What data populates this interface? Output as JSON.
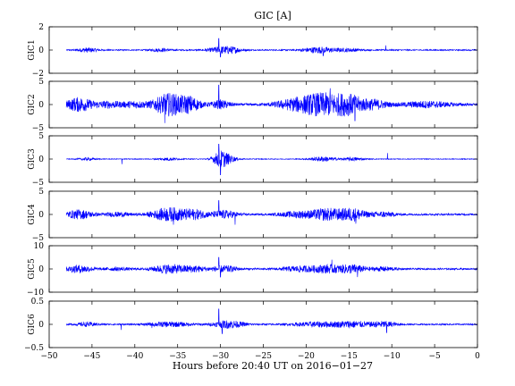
{
  "chart_data": {
    "type": "line",
    "title": "GIC [A]",
    "xlabel": "Hours before  20:40 UT on 2016−01−27",
    "xlim": [
      -50,
      0
    ],
    "xticks": [
      -50,
      -45,
      -40,
      -35,
      -30,
      -25,
      -20,
      -15,
      -10,
      -5,
      0
    ],
    "xtick_labels": [
      "−50",
      "−45",
      "−40",
      "−35",
      "−30",
      "−25",
      "−20",
      "−15",
      "−10",
      "−5",
      "0"
    ],
    "series_color": "#0000ff",
    "data_x_range": [
      -48,
      0
    ],
    "grid": false,
    "legend": "none",
    "panels": [
      {
        "label": "GIC1",
        "ylim": [
          -2,
          2
        ],
        "yticks": [
          -2,
          0,
          2
        ],
        "ytick_labels": [
          "−2",
          "0",
          "2"
        ],
        "baseline": 0,
        "noise": 0.05,
        "bursts": [
          {
            "t": -45.5,
            "w": 1.2,
            "a": 0.18
          },
          {
            "t": -37,
            "w": 1.2,
            "a": 0.12
          },
          {
            "t": -30,
            "w": 1.5,
            "a": 0.25
          },
          {
            "t": -28.5,
            "w": 1.2,
            "a": 0.18
          },
          {
            "t": -18.5,
            "w": 2.0,
            "a": 0.25
          },
          {
            "t": -15,
            "w": 1.5,
            "a": 0.12
          }
        ],
        "spikes": [
          {
            "t": -30.2,
            "v": 1.0
          },
          {
            "t": -30.0,
            "v": -0.6
          },
          {
            "t": -18.0,
            "v": -0.5
          },
          {
            "t": -10.7,
            "v": 0.4
          }
        ]
      },
      {
        "label": "GIC2",
        "ylim": [
          -5,
          5
        ],
        "yticks": [
          -5,
          0,
          5
        ],
        "ytick_labels": [
          "−5",
          "0",
          "5"
        ],
        "baseline": 0,
        "noise": 0.25,
        "bursts": [
          {
            "t": -46.5,
            "w": 1.6,
            "a": 1.4
          },
          {
            "t": -43,
            "w": 1.5,
            "a": 0.6
          },
          {
            "t": -40,
            "w": 1.5,
            "a": 0.6
          },
          {
            "t": -36,
            "w": 1.8,
            "a": 2.3
          },
          {
            "t": -33.5,
            "w": 1.2,
            "a": 1.4
          },
          {
            "t": -30,
            "w": 1.2,
            "a": 0.8
          },
          {
            "t": -21,
            "w": 2.5,
            "a": 1.2
          },
          {
            "t": -18,
            "w": 2.2,
            "a": 2.0
          },
          {
            "t": -15,
            "w": 1.8,
            "a": 1.9
          },
          {
            "t": -12,
            "w": 1.5,
            "a": 0.9
          },
          {
            "t": -6,
            "w": 3.0,
            "a": 0.6
          }
        ],
        "spikes": [
          {
            "t": -30.2,
            "v": 4.2
          },
          {
            "t": -36.5,
            "v": -4.0
          },
          {
            "t": -17.2,
            "v": 3.5
          },
          {
            "t": -14.3,
            "v": -3.5
          }
        ]
      },
      {
        "label": "GIC3",
        "ylim": [
          -5,
          5
        ],
        "yticks": [
          -5,
          0,
          5
        ],
        "ytick_labels": [
          "−5",
          "0",
          "5"
        ],
        "baseline": 0,
        "noise": 0.08,
        "bursts": [
          {
            "t": -45.5,
            "w": 1.0,
            "a": 0.25
          },
          {
            "t": -36,
            "w": 1.2,
            "a": 0.3
          },
          {
            "t": -30,
            "w": 0.9,
            "a": 1.6
          },
          {
            "t": -29,
            "w": 1.0,
            "a": 0.6
          },
          {
            "t": -18,
            "w": 1.5,
            "a": 0.5
          },
          {
            "t": -14.5,
            "w": 1.2,
            "a": 0.35
          }
        ],
        "spikes": [
          {
            "t": -30.2,
            "v": 3.2
          },
          {
            "t": -30.0,
            "v": -3.4
          },
          {
            "t": -41.5,
            "v": -1.1
          },
          {
            "t": -10.5,
            "v": 1.3
          }
        ]
      },
      {
        "label": "GIC4",
        "ylim": [
          -5,
          5
        ],
        "yticks": [
          -5,
          0,
          5
        ],
        "ytick_labels": [
          "−5",
          "0",
          "5"
        ],
        "baseline": 0,
        "noise": 0.2,
        "bursts": [
          {
            "t": -46.5,
            "w": 1.6,
            "a": 0.9
          },
          {
            "t": -42,
            "w": 1.5,
            "a": 0.4
          },
          {
            "t": -36,
            "w": 2.0,
            "a": 1.4
          },
          {
            "t": -33,
            "w": 1.5,
            "a": 0.9
          },
          {
            "t": -29.5,
            "w": 1.5,
            "a": 0.8
          },
          {
            "t": -21,
            "w": 2.0,
            "a": 0.6
          },
          {
            "t": -17.5,
            "w": 2.0,
            "a": 1.2
          },
          {
            "t": -14.5,
            "w": 1.5,
            "a": 1.2
          },
          {
            "t": -11,
            "w": 1.5,
            "a": 0.5
          }
        ],
        "spikes": [
          {
            "t": -30.2,
            "v": 3.0
          },
          {
            "t": -28.3,
            "v": -2.2
          },
          {
            "t": -14.2,
            "v": -2.0
          },
          {
            "t": -35.5,
            "v": -2.2
          }
        ]
      },
      {
        "label": "GIC5",
        "ylim": [
          -10,
          10
        ],
        "yticks": [
          -10,
          0,
          10
        ],
        "ytick_labels": [
          "−10",
          "0",
          "10"
        ],
        "baseline": 0,
        "noise": 0.35,
        "bursts": [
          {
            "t": -46.5,
            "w": 1.6,
            "a": 1.5
          },
          {
            "t": -42,
            "w": 1.5,
            "a": 0.6
          },
          {
            "t": -36,
            "w": 2.0,
            "a": 1.8
          },
          {
            "t": -33,
            "w": 1.5,
            "a": 1.1
          },
          {
            "t": -29.5,
            "w": 1.5,
            "a": 1.3
          },
          {
            "t": -21,
            "w": 2.0,
            "a": 1.0
          },
          {
            "t": -17.5,
            "w": 2.0,
            "a": 1.6
          },
          {
            "t": -14.5,
            "w": 1.5,
            "a": 1.6
          },
          {
            "t": -11,
            "w": 1.5,
            "a": 0.8
          }
        ],
        "spikes": [
          {
            "t": -30.2,
            "v": 5.0
          },
          {
            "t": -30.0,
            "v": -3.5
          },
          {
            "t": -17.0,
            "v": 4.0
          },
          {
            "t": -14.0,
            "v": -3.5
          }
        ]
      },
      {
        "label": "GIC6",
        "ylim": [
          -0.5,
          0.5
        ],
        "yticks": [
          -0.5,
          0,
          0.5
        ],
        "ytick_labels": [
          "−0.5",
          "0",
          "0.5"
        ],
        "baseline": 0,
        "noise": 0.015,
        "bursts": [
          {
            "t": -45.5,
            "w": 1.2,
            "a": 0.04
          },
          {
            "t": -36,
            "w": 2.5,
            "a": 0.05
          },
          {
            "t": -29,
            "w": 1.8,
            "a": 0.08
          },
          {
            "t": -18.5,
            "w": 3.0,
            "a": 0.05
          },
          {
            "t": -14.5,
            "w": 2.0,
            "a": 0.06
          },
          {
            "t": -11,
            "w": 1.5,
            "a": 0.06
          }
        ],
        "spikes": [
          {
            "t": -30.2,
            "v": 0.33
          },
          {
            "t": -29.8,
            "v": -0.2
          },
          {
            "t": -41.6,
            "v": -0.12
          },
          {
            "t": -10.6,
            "v": -0.18
          },
          {
            "t": -38,
            "v": -0.08
          }
        ]
      }
    ]
  }
}
